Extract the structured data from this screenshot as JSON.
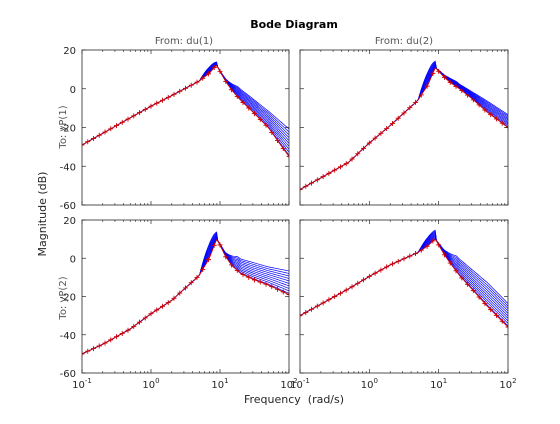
{
  "chart_data": {
    "type": "line",
    "title": "Bode Diagram",
    "xlabel": "Frequency  (rad/s)",
    "ylabel": "Magnitude (dB)",
    "x_scale": "log",
    "xlim": [
      0.1,
      100
    ],
    "ylim": [
      -60,
      20
    ],
    "x_ticks": [
      {
        "value": 0.1,
        "base": "10",
        "exp": "-1"
      },
      {
        "value": 1,
        "base": "10",
        "exp": "0"
      },
      {
        "value": 10,
        "base": "10",
        "exp": "1"
      },
      {
        "value": 100,
        "base": "10",
        "exp": "2"
      }
    ],
    "y_ticks": [
      -60,
      -40,
      -20,
      0,
      20
    ],
    "column_labels": [
      "From: du(1)",
      "From: du(2)"
    ],
    "row_labels": [
      "To: yP(1)",
      "To: yP(2)"
    ],
    "colors": {
      "samples": "#0000ff",
      "nominal": "#cc0000",
      "axes": "#262626",
      "text": "#262626"
    },
    "resonance_frequency": 9.0,
    "panels": [
      {
        "row": 0,
        "col": 0,
        "nominal": {
          "x": [
            0.1,
            0.2,
            0.5,
            1,
            2,
            5,
            7,
            8.5,
            9,
            10,
            12,
            15,
            20,
            30,
            50,
            100
          ],
          "y": [
            -29,
            -23,
            -15,
            -9,
            -3.5,
            4,
            8,
            11.5,
            12,
            9,
            4,
            -1,
            -6,
            -12,
            -20,
            -35
          ]
        },
        "upper_envelope": {
          "x": [
            9,
            12,
            20,
            50,
            100
          ],
          "y": [
            14,
            7,
            0,
            -11,
            -20
          ]
        }
      },
      {
        "row": 0,
        "col": 1,
        "nominal": {
          "x": [
            0.1,
            0.2,
            0.5,
            1,
            2,
            5,
            7,
            8.5,
            9,
            10,
            12,
            15,
            20,
            30,
            50,
            100
          ],
          "y": [
            -52,
            -46,
            -38,
            -28,
            -19,
            -6,
            2,
            9,
            11,
            9,
            6,
            3,
            0,
            -5,
            -12,
            -20
          ]
        },
        "upper_envelope": {
          "x": [
            9,
            12,
            20,
            50,
            100
          ],
          "y": [
            14.5,
            9,
            2.5,
            -6,
            -13
          ]
        }
      },
      {
        "row": 1,
        "col": 0,
        "nominal": {
          "x": [
            0.1,
            0.2,
            0.5,
            1,
            2,
            5,
            7,
            8.5,
            9,
            10,
            12,
            15,
            20,
            30,
            50,
            100
          ],
          "y": [
            -50,
            -45,
            -37,
            -29,
            -22,
            -9,
            0,
            8,
            10,
            7,
            1,
            -4,
            -8,
            -11,
            -14,
            -19
          ]
        },
        "upper_envelope": {
          "x": [
            9,
            12,
            20,
            50,
            100
          ],
          "y": [
            14,
            6,
            0,
            -4,
            -6
          ]
        }
      },
      {
        "row": 1,
        "col": 1,
        "nominal": {
          "x": [
            0.1,
            0.2,
            0.5,
            1,
            2,
            5,
            7,
            8.5,
            9,
            10,
            12,
            15,
            20,
            30,
            50,
            100
          ],
          "y": [
            -30,
            -24,
            -16,
            -9.5,
            -3.5,
            3,
            6.5,
            9.5,
            10,
            7,
            2,
            -3,
            -9,
            -16,
            -25,
            -36
          ]
        },
        "upper_envelope": {
          "x": [
            9,
            12,
            20,
            50,
            100
          ],
          "y": [
            15,
            8,
            0,
            -12,
            -23
          ]
        }
      }
    ]
  }
}
